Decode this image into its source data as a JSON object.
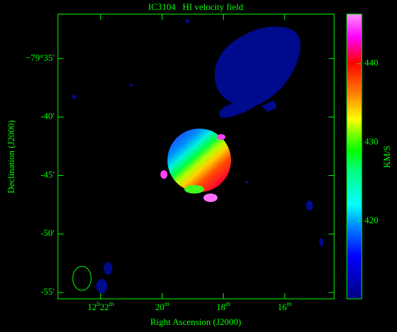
{
  "chart_data": {
    "type": "image",
    "title": "IC3104   HI velocity field",
    "xlabel": "Right Ascension (J2000)",
    "ylabel": "Declination (J2000)",
    "color": "#00ff00",
    "xlim": [
      12.39,
      12.2398
    ],
    "xticks": [
      {
        "value": 12.3667,
        "label": "12h22m"
      },
      {
        "value": 12.3333,
        "label": "20m"
      },
      {
        "value": 12.3,
        "label": "18m"
      },
      {
        "value": 12.2667,
        "label": "16m"
      }
    ],
    "ylim": [
      -79.9257,
      -79.52
    ],
    "yticks": [
      {
        "value": -79.5833,
        "label": "−79°35'"
      },
      {
        "value": -79.6667,
        "label": "-40'"
      },
      {
        "value": -79.75,
        "label": "-45'"
      },
      {
        "value": -79.8333,
        "label": "-50'"
      },
      {
        "value": -79.9167,
        "label": "-55'"
      }
    ],
    "colorbar": {
      "label": "KM/S",
      "lim": [
        410.1,
        446.3
      ],
      "ticks": [
        420,
        430,
        440
      ]
    }
  }
}
